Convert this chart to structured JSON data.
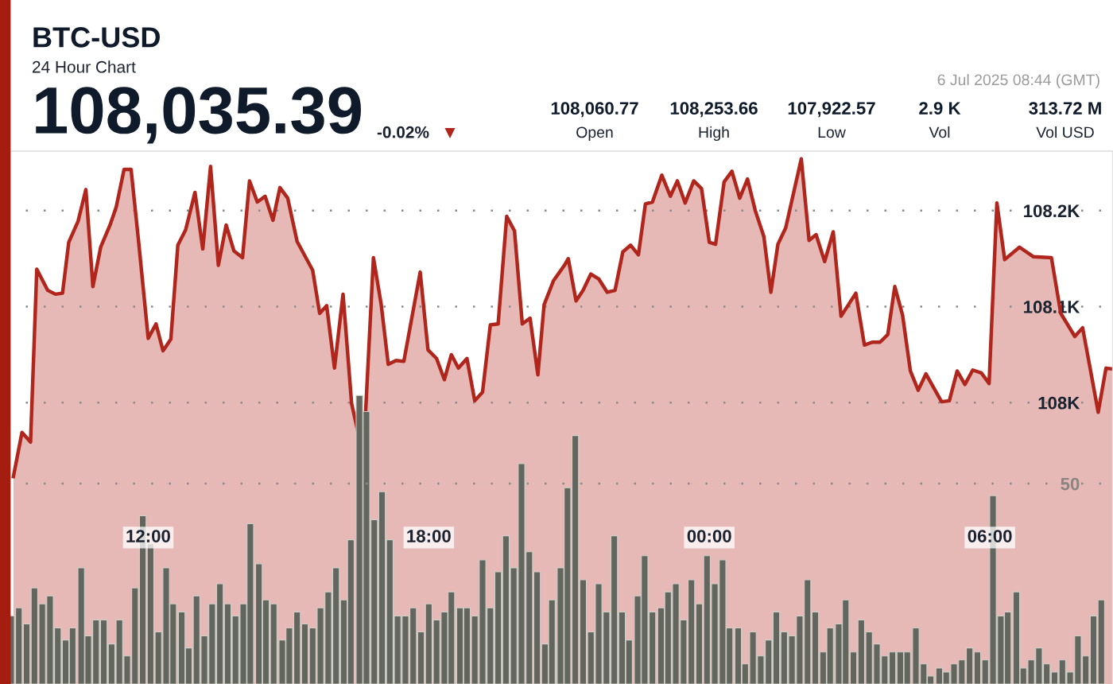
{
  "chart_data": [
    {
      "type": "area",
      "title": "BTC-USD",
      "subtitle": "24 Hour Chart",
      "annotations": [
        "108,035.39",
        "-0.02%",
        "▼",
        "108,060.77",
        "Open",
        "108,253.66",
        "High",
        "107,922.57",
        "Low",
        "2.9 K",
        "Vol",
        "313.72 M",
        "Vol USD",
        "6 Jul 2025 08:44 (GMT)"
      ],
      "xlim": [
        "2025-07-05T09:00",
        "2025-07-06T08:38"
      ],
      "tick_labels": "y",
      "ylim": [
        107707,
        108262
      ],
      "yticks": [
        {
          "value": 108000,
          "label": "108K"
        },
        {
          "value": 108100,
          "label": "108.1K"
        },
        {
          "value": 108200,
          "label": "108.2K"
        }
      ],
      "grid": "y",
      "color": "#b0261c",
      "x": [
        "2025-07-05T09:07",
        "2025-07-05T09:18",
        "2025-07-05T09:29",
        "2025-07-05T09:37",
        "2025-07-05T09:51",
        "2025-07-05T10:01",
        "2025-07-05T10:10",
        "2025-07-05T10:18",
        "2025-07-05T10:30",
        "2025-07-05T10:40",
        "2025-07-05T10:49",
        "2025-07-05T10:59",
        "2025-07-05T11:11",
        "2025-07-05T11:19",
        "2025-07-05T11:29",
        "2025-07-05T11:38",
        "2025-07-05T11:48",
        "2025-07-05T12:00",
        "2025-07-05T12:10",
        "2025-07-05T12:19",
        "2025-07-05T12:29",
        "2025-07-05T12:38",
        "2025-07-05T12:48",
        "2025-07-05T13:00",
        "2025-07-05T13:10",
        "2025-07-05T13:20",
        "2025-07-05T13:30",
        "2025-07-05T13:40",
        "2025-07-05T13:50",
        "2025-07-05T14:01",
        "2025-07-05T14:10",
        "2025-07-05T14:20",
        "2025-07-05T14:30",
        "2025-07-05T14:40",
        "2025-07-05T14:49",
        "2025-07-05T14:59",
        "2025-07-05T15:11",
        "2025-07-05T15:31",
        "2025-07-05T15:40",
        "2025-07-05T15:49",
        "2025-07-05T15:59",
        "2025-07-05T16:10",
        "2025-07-05T16:21",
        "2025-07-05T16:29",
        "2025-07-05T16:38",
        "2025-07-05T16:49",
        "2025-07-05T16:59",
        "2025-07-05T17:08",
        "2025-07-05T17:18",
        "2025-07-05T17:28",
        "2025-07-05T17:49",
        "2025-07-05T17:59",
        "2025-07-05T18:10",
        "2025-07-05T18:20",
        "2025-07-05T18:29",
        "2025-07-05T18:38",
        "2025-07-05T18:49",
        "2025-07-05T18:59",
        "2025-07-05T19:09",
        "2025-07-05T19:19",
        "2025-07-05T19:29",
        "2025-07-05T19:40",
        "2025-07-05T19:50",
        "2025-07-05T20:00",
        "2025-07-05T20:10",
        "2025-07-05T20:20",
        "2025-07-05T20:28",
        "2025-07-05T20:40",
        "2025-07-05T20:54",
        "2025-07-05T20:59",
        "2025-07-05T21:09",
        "2025-07-05T21:18",
        "2025-07-05T21:28",
        "2025-07-05T21:38",
        "2025-07-05T21:49",
        "2025-07-05T21:59",
        "2025-07-05T22:09",
        "2025-07-05T22:19",
        "2025-07-05T22:29",
        "2025-07-05T22:38",
        "2025-07-05T22:47",
        "2025-07-05T22:59",
        "2025-07-05T23:10",
        "2025-07-05T23:19",
        "2025-07-05T23:29",
        "2025-07-05T23:40",
        "2025-07-05T23:50",
        "2025-07-06T00:00",
        "2025-07-06T00:08",
        "2025-07-06T00:19",
        "2025-07-06T00:29",
        "2025-07-06T00:39",
        "2025-07-06T00:49",
        "2025-07-06T00:59",
        "2025-07-06T01:10",
        "2025-07-06T01:19",
        "2025-07-06T01:28",
        "2025-07-06T01:38",
        "2025-07-06T01:58",
        "2025-07-06T02:08",
        "2025-07-06T02:17",
        "2025-07-06T02:28",
        "2025-07-06T02:39",
        "2025-07-06T02:49",
        "2025-07-06T03:08",
        "2025-07-06T03:19",
        "2025-07-06T03:29",
        "2025-07-06T03:39",
        "2025-07-06T03:49",
        "2025-07-06T03:58",
        "2025-07-06T04:08",
        "2025-07-06T04:18",
        "2025-07-06T04:28",
        "2025-07-06T04:38",
        "2025-07-06T04:49",
        "2025-07-06T04:58",
        "2025-07-06T05:08",
        "2025-07-06T05:18",
        "2025-07-06T05:28",
        "2025-07-06T05:38",
        "2025-07-06T05:49",
        "2025-07-06T05:59",
        "2025-07-06T06:09",
        "2025-07-06T06:19",
        "2025-07-06T06:38",
        "2025-07-06T06:56",
        "2025-07-06T07:19",
        "2025-07-06T07:31",
        "2025-07-06T07:49",
        "2025-07-06T07:59",
        "2025-07-06T08:10",
        "2025-07-06T08:19",
        "2025-07-06T08:29",
        "2025-07-06T08:38"
      ],
      "values": [
        107923,
        107969,
        107959,
        108139,
        108117,
        108113,
        108114,
        108167,
        108189,
        108222,
        108121,
        108162,
        108185,
        108204,
        108243,
        108243,
        108165,
        108067,
        108082,
        108054,
        108066,
        108164,
        108180,
        108219,
        108160,
        108246,
        108143,
        108185,
        108158,
        108151,
        108231,
        108209,
        108215,
        108190,
        108224,
        108213,
        108168,
        108138,
        108093,
        108101,
        108036,
        108113,
        107999,
        107970,
        107975,
        108151,
        108102,
        108040,
        108044,
        108043,
        108136,
        108055,
        108046,
        108024,
        108050,
        108036,
        108046,
        108002,
        108011,
        108081,
        108082,
        108194,
        108179,
        108082,
        108088,
        108029,
        108102,
        108127,
        108143,
        108150,
        108106,
        108117,
        108134,
        108129,
        108115,
        108117,
        108157,
        108164,
        108154,
        108207,
        108209,
        108237,
        108215,
        108231,
        108208,
        108231,
        108223,
        108167,
        108165,
        108230,
        108241,
        108213,
        108233,
        108200,
        108173,
        108115,
        108165,
        108182,
        108254,
        108169,
        108175,
        108147,
        108178,
        108090,
        108114,
        108060,
        108063,
        108063,
        108071,
        108121,
        108091,
        108033,
        108013,
        108030,
        108014,
        108001,
        108002,
        108033,
        108019,
        108034,
        108031,
        108020,
        108208,
        108149,
        108162,
        108152,
        108151,
        108093,
        108069,
        108078,
        108030,
        107990,
        108036,
        108035
      ]
    },
    {
      "type": "bar",
      "color": "#62665e",
      "xlim": [
        "2025-07-05T09:00",
        "2025-07-06T08:38"
      ],
      "xticks": [
        {
          "value": "2025-07-05T12:00",
          "label": "12:00"
        },
        {
          "value": "2025-07-05T18:00",
          "label": "18:00"
        },
        {
          "value": "2025-07-06T00:00",
          "label": "00:00"
        },
        {
          "value": "2025-07-06T06:00",
          "label": "06:00"
        }
      ],
      "ylim": [
        0,
        133
      ],
      "yticks": [
        50
      ],
      "grid": "y",
      "x": [
        "2025-07-05T09:04",
        "2025-07-05T09:14",
        "2025-07-05T09:24",
        "2025-07-05T09:34",
        "2025-07-05T09:44",
        "2025-07-05T09:54",
        "2025-07-05T10:04",
        "2025-07-05T10:14",
        "2025-07-05T10:23",
        "2025-07-05T10:34",
        "2025-07-05T10:43",
        "2025-07-05T10:53",
        "2025-07-05T11:03",
        "2025-07-05T11:13",
        "2025-07-05T11:23",
        "2025-07-05T11:33",
        "2025-07-05T11:43",
        "2025-07-05T11:53",
        "2025-07-05T12:03",
        "2025-07-05T12:13",
        "2025-07-05T12:23",
        "2025-07-05T12:32",
        "2025-07-05T12:43",
        "2025-07-05T12:52",
        "2025-07-05T13:02",
        "2025-07-05T13:12",
        "2025-07-05T13:22",
        "2025-07-05T13:32",
        "2025-07-05T13:42",
        "2025-07-05T13:52",
        "2025-07-05T14:02",
        "2025-07-05T14:11",
        "2025-07-05T14:22",
        "2025-07-05T14:31",
        "2025-07-05T14:41",
        "2025-07-05T14:52",
        "2025-07-05T15:01",
        "2025-07-05T15:11",
        "2025-07-05T15:21",
        "2025-07-05T15:31",
        "2025-07-05T15:41",
        "2025-07-05T15:51",
        "2025-07-05T16:01",
        "2025-07-05T16:11",
        "2025-07-05T16:20",
        "2025-07-05T16:31",
        "2025-07-05T16:40",
        "2025-07-05T16:50",
        "2025-07-05T17:00",
        "2025-07-05T17:10",
        "2025-07-05T17:20",
        "2025-07-05T17:30",
        "2025-07-05T17:40",
        "2025-07-05T17:50",
        "2025-07-05T18:00",
        "2025-07-05T18:10",
        "2025-07-05T18:20",
        "2025-07-05T18:29",
        "2025-07-05T18:40",
        "2025-07-05T18:49",
        "2025-07-05T18:59",
        "2025-07-05T19:09",
        "2025-07-05T19:19",
        "2025-07-05T19:29",
        "2025-07-05T19:39",
        "2025-07-05T19:49",
        "2025-07-05T19:59",
        "2025-07-05T20:09",
        "2025-07-05T20:19",
        "2025-07-05T20:29",
        "2025-07-05T20:38",
        "2025-07-05T20:49",
        "2025-07-05T20:58",
        "2025-07-05T21:08",
        "2025-07-05T21:18",
        "2025-07-05T21:28",
        "2025-07-05T21:38",
        "2025-07-05T21:48",
        "2025-07-05T21:58",
        "2025-07-05T22:08",
        "2025-07-05T22:17",
        "2025-07-05T22:28",
        "2025-07-05T22:37",
        "2025-07-05T22:47",
        "2025-07-05T22:58",
        "2025-07-05T23:07",
        "2025-07-05T23:17",
        "2025-07-05T23:27",
        "2025-07-05T23:37",
        "2025-07-05T23:47",
        "2025-07-05T23:57",
        "2025-07-06T00:07",
        "2025-07-06T00:17",
        "2025-07-06T00:26",
        "2025-07-06T00:37",
        "2025-07-06T00:46",
        "2025-07-06T00:56",
        "2025-07-06T01:06",
        "2025-07-06T01:16",
        "2025-07-06T01:26",
        "2025-07-06T01:36",
        "2025-07-06T01:46",
        "2025-07-06T01:56",
        "2025-07-06T02:06",
        "2025-07-06T02:16",
        "2025-07-06T02:26",
        "2025-07-06T02:35",
        "2025-07-06T02:46",
        "2025-07-06T02:55",
        "2025-07-06T03:05",
        "2025-07-06T03:15",
        "2025-07-06T03:25",
        "2025-07-06T03:35",
        "2025-07-06T03:45",
        "2025-07-06T03:55",
        "2025-07-06T04:05",
        "2025-07-06T04:14",
        "2025-07-06T04:25",
        "2025-07-06T04:35",
        "2025-07-06T04:44",
        "2025-07-06T04:55",
        "2025-07-06T05:04",
        "2025-07-06T05:14",
        "2025-07-06T05:24",
        "2025-07-06T05:34",
        "2025-07-06T05:44",
        "2025-07-06T05:54",
        "2025-07-06T06:04",
        "2025-07-06T06:14",
        "2025-07-06T06:23",
        "2025-07-06T06:34",
        "2025-07-06T06:43",
        "2025-07-06T06:53",
        "2025-07-06T07:03",
        "2025-07-06T07:13",
        "2025-07-06T07:23",
        "2025-07-06T07:33",
        "2025-07-06T07:43",
        "2025-07-06T07:53",
        "2025-07-06T08:03",
        "2025-07-06T08:13",
        "2025-07-06T08:23"
      ],
      "values": [
        17,
        19,
        15,
        24,
        20,
        22,
        14,
        11,
        14,
        29,
        12,
        16,
        16,
        10,
        16,
        7,
        24,
        42,
        35,
        13,
        29,
        20,
        18,
        9,
        22,
        12,
        20,
        25,
        20,
        17,
        20,
        40,
        30,
        21,
        20,
        11,
        14,
        18,
        15,
        14,
        19,
        23,
        29,
        21,
        36,
        72,
        68,
        41,
        48,
        36,
        17,
        17,
        19,
        13,
        20,
        16,
        18,
        23,
        19,
        19,
        17,
        31,
        19,
        28,
        37,
        29,
        55,
        33,
        28,
        10,
        21,
        29,
        49,
        62,
        26,
        13,
        25,
        18,
        37,
        18,
        11,
        22,
        32,
        18,
        19,
        23,
        25,
        16,
        26,
        20,
        32,
        25,
        31,
        14,
        14,
        5,
        13,
        7,
        11,
        18,
        13,
        12,
        17,
        26,
        18,
        8,
        14,
        15,
        21,
        8,
        16,
        13,
        10,
        7,
        8,
        8,
        8,
        14,
        5,
        2,
        4,
        3,
        5,
        6,
        9,
        8,
        6,
        47,
        17,
        18,
        23,
        4,
        6,
        9,
        5,
        3,
        6,
        3,
        12,
        7,
        17,
        21
      ]
    }
  ]
}
